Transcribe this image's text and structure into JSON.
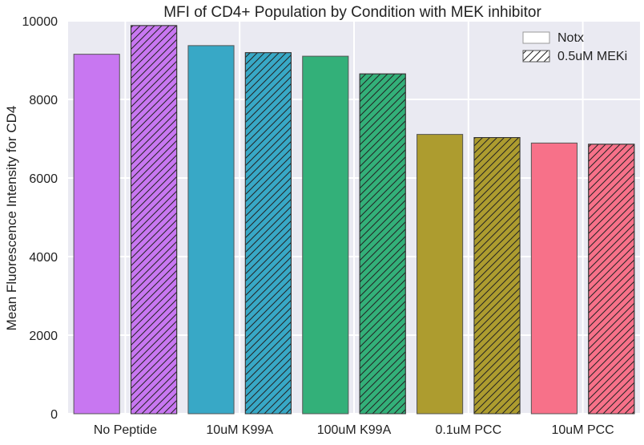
{
  "chart_data": {
    "type": "bar",
    "title": "MFI of CD4+ Population by Condition with MEK inhibitor",
    "xlabel": "",
    "ylabel": "Mean Fluorescence Intensity for CD4",
    "ylim": [
      0,
      10000
    ],
    "yticks": [
      "0",
      "2000",
      "4000",
      "6000",
      "8000",
      "10000"
    ],
    "grid": true,
    "legend_position": "top-right",
    "categories": [
      "No Peptide",
      "10uM K99A",
      "100uM K99A",
      "0.1uM PCC",
      "10uM PCC"
    ],
    "category_colors": [
      "#c877f1",
      "#38a8c6",
      "#33b079",
      "#ad9c2f",
      "#f77189"
    ],
    "series": [
      {
        "name": "Notx",
        "hatched": false,
        "values": [
          9150,
          9370,
          9100,
          7110,
          6890
        ]
      },
      {
        "name": "0.5uM MEKi",
        "hatched": true,
        "values": [
          9880,
          9190,
          8650,
          7030,
          6860
        ]
      }
    ],
    "background_color": "#eaeaf2",
    "grid_color": "#ffffff"
  }
}
